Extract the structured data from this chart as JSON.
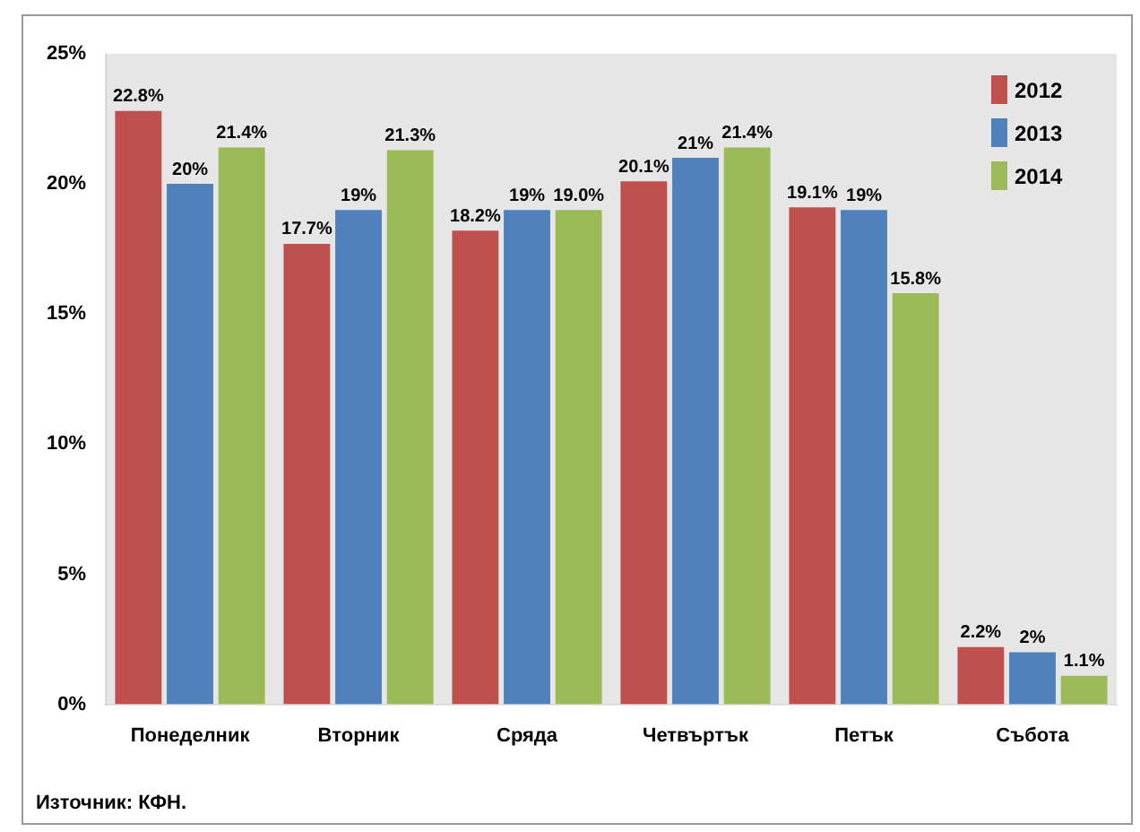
{
  "chart_data": {
    "type": "bar",
    "categories": [
      "Понеделник",
      "Вторник",
      "Сряда",
      "Четвъртък",
      "Петък",
      "Събота"
    ],
    "series": [
      {
        "name": "2012",
        "color": "#c0504d",
        "values": [
          22.8,
          17.7,
          18.2,
          20.1,
          19.1,
          2.2
        ],
        "value_labels": [
          "22.8%",
          "17.7%",
          "18.2%",
          "20.1%",
          "19.1%",
          "2.2%"
        ]
      },
      {
        "name": "2013",
        "color": "#4f81bd",
        "values": [
          20,
          19,
          19,
          21,
          19,
          2
        ],
        "value_labels": [
          "20%",
          "19%",
          "19%",
          "21%",
          "19%",
          "2%"
        ]
      },
      {
        "name": "2014",
        "color": "#9bbb59",
        "values": [
          21.4,
          21.3,
          19.0,
          21.4,
          15.8,
          1.1
        ],
        "value_labels": [
          "21.4%",
          "21.3%",
          "19.0%",
          "21.4%",
          "15.8%",
          "1.1%"
        ]
      }
    ],
    "ylim": [
      0,
      25
    ],
    "yticks": [
      {
        "value": 0,
        "label": "0%"
      },
      {
        "value": 5,
        "label": "5%"
      },
      {
        "value": 10,
        "label": "10%"
      },
      {
        "value": 15,
        "label": "15%"
      },
      {
        "value": 20,
        "label": "20%"
      },
      {
        "value": 25,
        "label": "25%"
      }
    ],
    "grid": false,
    "legend": "top right",
    "annotations": [
      "Източник: КФН."
    ]
  }
}
